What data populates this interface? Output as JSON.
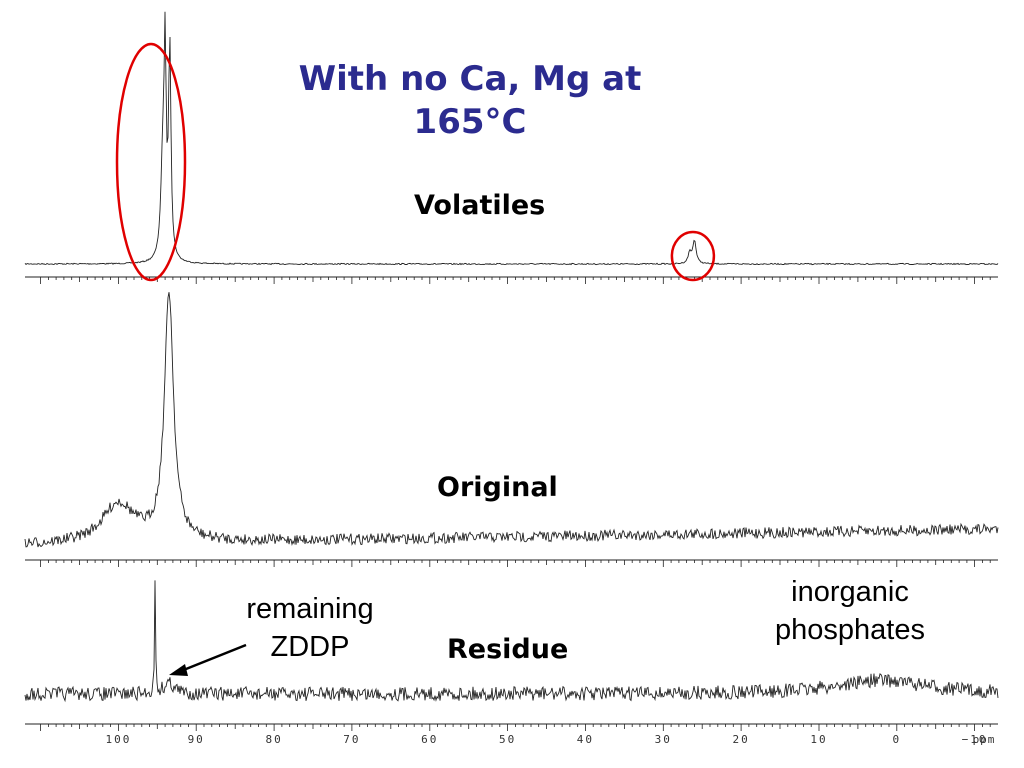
{
  "title_line1": "With no Ca, Mg at",
  "title_line2": "165°C",
  "colors": {
    "title": "#2b2b8f",
    "trace": "#222222",
    "highlight": "#e00000"
  },
  "chart_data": {
    "type": "line",
    "xlabel": "ppm",
    "xlim": [
      112,
      -13
    ],
    "x_ticks": [
      100,
      90,
      80,
      70,
      60,
      50,
      40,
      30,
      20,
      10,
      0,
      -10
    ],
    "x_tick_labels": [
      "100",
      "90",
      "80",
      "70",
      "60",
      "50",
      "40",
      "30",
      "20",
      "10",
      "0",
      "−10"
    ],
    "grid": false,
    "series": [
      {
        "name": "Volatiles",
        "peaks": [
          {
            "x": 93.4,
            "height": 1.0,
            "width": 0.18
          },
          {
            "x": 94.0,
            "height": 0.88,
            "width": 0.16
          },
          {
            "x": 94.3,
            "height": 0.45,
            "width": 0.3
          },
          {
            "x": 26.0,
            "height": 0.11,
            "width": 0.25
          },
          {
            "x": 26.6,
            "height": 0.05,
            "width": 0.25
          }
        ]
      },
      {
        "name": "Original",
        "peaks": [
          {
            "x": 93.5,
            "height": 1.0,
            "width": 0.7
          },
          {
            "x": 100,
            "height": 0.16,
            "width": 2.5
          }
        ]
      },
      {
        "name": "Residue",
        "peaks": [
          {
            "x": 95.3,
            "height": 1.0,
            "width": 0.07
          },
          {
            "x": 93.5,
            "height": 0.1,
            "width": 0.8
          },
          {
            "x": 2,
            "height": 0.12,
            "width": 7
          }
        ]
      }
    ],
    "annotations": {
      "remaining_zddp": {
        "line1": "remaining",
        "line2": "ZDDP",
        "points_to_ppm": 93.5
      },
      "inorganic_phosphates": {
        "line1": "inorganic",
        "line2": "phosphates"
      }
    }
  }
}
